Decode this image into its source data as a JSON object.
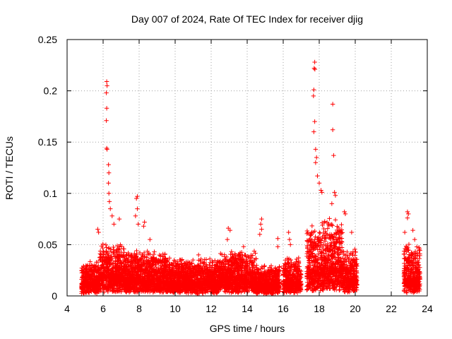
{
  "chart_data": {
    "type": "scatter",
    "title": "Day 007 of 2024, Rate Of TEC Index for receiver djig",
    "xlabel": "GPS time / hours",
    "ylabel": "ROTI / TECUs",
    "xlim": [
      4,
      24
    ],
    "ylim": [
      0,
      0.25
    ],
    "xticks": [
      4,
      6,
      8,
      10,
      12,
      14,
      16,
      18,
      20,
      22,
      24
    ],
    "yticks": [
      0,
      0.05,
      0.1,
      0.15,
      0.2,
      0.25
    ],
    "xtick_labels": [
      "4",
      "6",
      "8",
      "10",
      "12",
      "14",
      "16",
      "18",
      "20",
      "22",
      "24"
    ],
    "ytick_labels": [
      "0",
      "0.05",
      "0.1",
      "0.15",
      "0.2",
      "0.25"
    ],
    "grid": true,
    "marker": "+",
    "color": "#ff0000",
    "segments": [
      {
        "x": [
          4.8,
          5.8
        ],
        "level": 0.012,
        "spread": 0.022
      },
      {
        "x": [
          5.8,
          7.2
        ],
        "level": 0.018,
        "spread": 0.032
      },
      {
        "x": [
          7.2,
          9.5
        ],
        "level": 0.014,
        "spread": 0.03
      },
      {
        "x": [
          9.5,
          12.5
        ],
        "level": 0.012,
        "spread": 0.024
      },
      {
        "x": [
          12.5,
          14.5
        ],
        "level": 0.015,
        "spread": 0.03
      },
      {
        "x": [
          14.5,
          15.8
        ],
        "level": 0.01,
        "spread": 0.02
      },
      {
        "x": [
          16.0,
          17.0
        ],
        "level": 0.012,
        "spread": 0.025
      },
      {
        "x": [
          17.3,
          18.2
        ],
        "level": 0.02,
        "spread": 0.05
      },
      {
        "x": [
          18.2,
          19.3
        ],
        "level": 0.025,
        "spread": 0.05
      },
      {
        "x": [
          19.3,
          20.1
        ],
        "level": 0.015,
        "spread": 0.03
      },
      {
        "x": [
          22.7,
          23.6
        ],
        "level": 0.015,
        "spread": 0.035
      }
    ],
    "peaks": [
      {
        "x": 6.2,
        "y": 0.209
      },
      {
        "x": 6.22,
        "y": 0.205
      },
      {
        "x": 6.18,
        "y": 0.198
      },
      {
        "x": 6.2,
        "y": 0.183
      },
      {
        "x": 6.18,
        "y": 0.171
      },
      {
        "x": 6.2,
        "y": 0.144
      },
      {
        "x": 6.22,
        "y": 0.143
      },
      {
        "x": 6.3,
        "y": 0.128
      },
      {
        "x": 6.32,
        "y": 0.12
      },
      {
        "x": 6.3,
        "y": 0.11
      },
      {
        "x": 6.32,
        "y": 0.1
      },
      {
        "x": 6.35,
        "y": 0.092
      },
      {
        "x": 6.4,
        "y": 0.085
      },
      {
        "x": 6.5,
        "y": 0.078
      },
      {
        "x": 5.7,
        "y": 0.065
      },
      {
        "x": 5.75,
        "y": 0.062
      },
      {
        "x": 6.6,
        "y": 0.07
      },
      {
        "x": 6.9,
        "y": 0.075
      },
      {
        "x": 7.9,
        "y": 0.097
      },
      {
        "x": 7.85,
        "y": 0.095
      },
      {
        "x": 7.9,
        "y": 0.085
      },
      {
        "x": 7.8,
        "y": 0.078
      },
      {
        "x": 7.95,
        "y": 0.07
      },
      {
        "x": 8.3,
        "y": 0.072
      },
      {
        "x": 8.25,
        "y": 0.068
      },
      {
        "x": 8.6,
        "y": 0.055
      },
      {
        "x": 9.6,
        "y": 0.035
      },
      {
        "x": 11.3,
        "y": 0.04
      },
      {
        "x": 12.95,
        "y": 0.066
      },
      {
        "x": 13.05,
        "y": 0.064
      },
      {
        "x": 12.9,
        "y": 0.055
      },
      {
        "x": 13.8,
        "y": 0.048
      },
      {
        "x": 14.8,
        "y": 0.075
      },
      {
        "x": 14.75,
        "y": 0.07
      },
      {
        "x": 14.8,
        "y": 0.065
      },
      {
        "x": 14.7,
        "y": 0.06
      },
      {
        "x": 15.7,
        "y": 0.056
      },
      {
        "x": 15.7,
        "y": 0.048
      },
      {
        "x": 16.3,
        "y": 0.062
      },
      {
        "x": 16.35,
        "y": 0.055
      },
      {
        "x": 16.4,
        "y": 0.05
      },
      {
        "x": 17.75,
        "y": 0.228
      },
      {
        "x": 17.72,
        "y": 0.222
      },
      {
        "x": 17.76,
        "y": 0.221
      },
      {
        "x": 17.7,
        "y": 0.201
      },
      {
        "x": 17.68,
        "y": 0.195
      },
      {
        "x": 17.75,
        "y": 0.17
      },
      {
        "x": 17.7,
        "y": 0.16
      },
      {
        "x": 17.8,
        "y": 0.143
      },
      {
        "x": 17.85,
        "y": 0.135
      },
      {
        "x": 17.8,
        "y": 0.13
      },
      {
        "x": 17.9,
        "y": 0.117
      },
      {
        "x": 18.0,
        "y": 0.11
      },
      {
        "x": 18.1,
        "y": 0.103
      },
      {
        "x": 18.15,
        "y": 0.101
      },
      {
        "x": 18.75,
        "y": 0.187
      },
      {
        "x": 18.75,
        "y": 0.162
      },
      {
        "x": 18.8,
        "y": 0.137
      },
      {
        "x": 18.85,
        "y": 0.101
      },
      {
        "x": 18.9,
        "y": 0.098
      },
      {
        "x": 18.7,
        "y": 0.09
      },
      {
        "x": 19.4,
        "y": 0.082
      },
      {
        "x": 19.45,
        "y": 0.08
      },
      {
        "x": 19.8,
        "y": 0.062
      },
      {
        "x": 17.5,
        "y": 0.06
      },
      {
        "x": 22.9,
        "y": 0.082
      },
      {
        "x": 22.95,
        "y": 0.08
      },
      {
        "x": 22.9,
        "y": 0.076
      },
      {
        "x": 22.75,
        "y": 0.062
      },
      {
        "x": 23.2,
        "y": 0.064
      },
      {
        "x": 23.3,
        "y": 0.055
      },
      {
        "x": 23.45,
        "y": 0.042
      }
    ]
  }
}
